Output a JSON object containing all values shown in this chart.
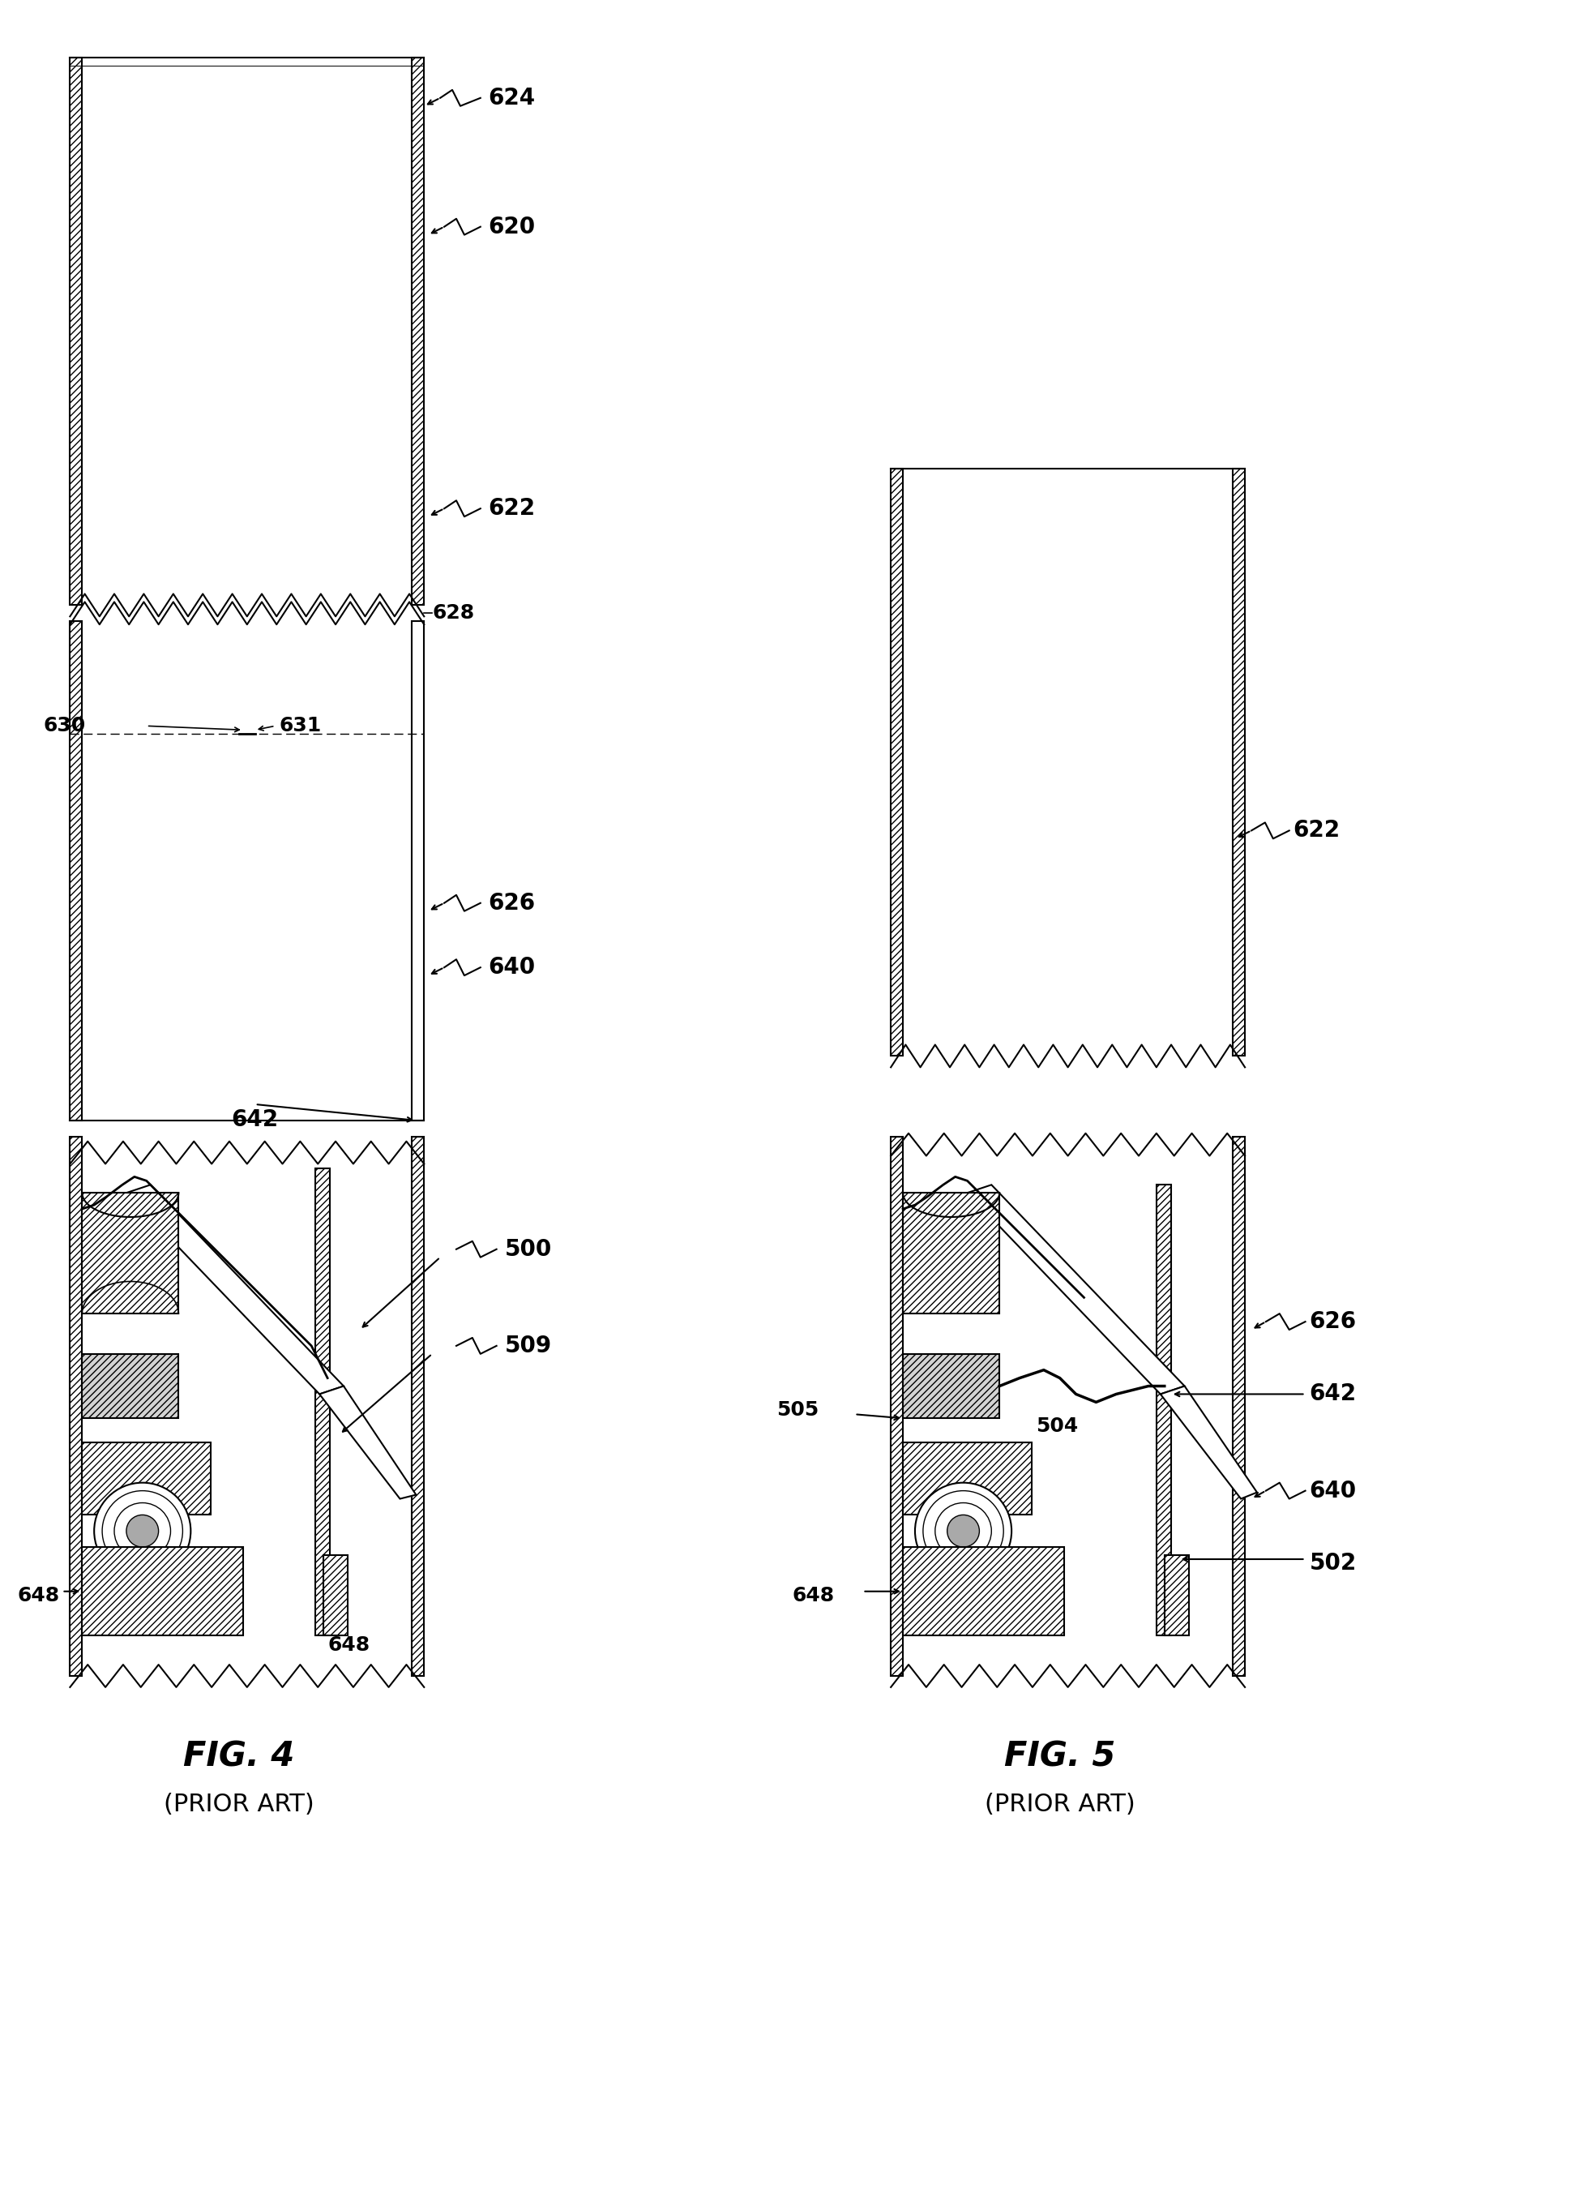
{
  "fig_width": 19.68,
  "fig_height": 27.22,
  "bg_color": "#ffffff",
  "line_color": "#000000",
  "title4": "FIG. 4",
  "subtitle4": "(PRIOR ART)",
  "title5": "FIG. 5",
  "subtitle5": "(PRIOR ART)"
}
